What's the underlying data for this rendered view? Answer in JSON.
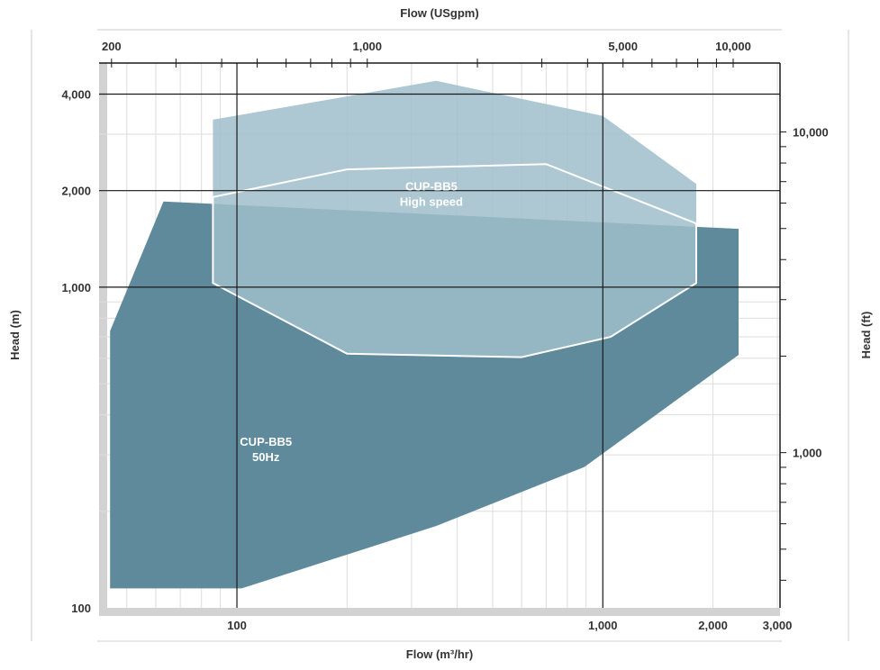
{
  "chart_data": {
    "type": "area",
    "title": "",
    "xlabel_bottom": "Flow (m³/hr)",
    "xlabel_top": "Flow (USgpm)",
    "ylabel_left": "Head (m)",
    "ylabel_right": "Head (ft)",
    "x_scale": "log",
    "y_scale": "log",
    "xlim": [
      42,
      3050
    ],
    "ylim": [
      100,
      5000
    ],
    "grid": true,
    "x_ticks_bottom": [
      {
        "value": 100,
        "label": "100"
      },
      {
        "value": 1000,
        "label": "1,000"
      },
      {
        "value": 2000,
        "label": "2,000"
      },
      {
        "value": 3000,
        "label": "3,000"
      }
    ],
    "x_ticks_top": [
      {
        "value": 200,
        "label": "200"
      },
      {
        "value": 1000,
        "label": "1,000"
      },
      {
        "value": 5000,
        "label": "5,000"
      },
      {
        "value": 10000,
        "label": "10,000"
      }
    ],
    "y_ticks_left": [
      {
        "value": 100,
        "label": "100"
      },
      {
        "value": 1000,
        "label": "1,000"
      },
      {
        "value": 2000,
        "label": "2,000"
      },
      {
        "value": 4000,
        "label": "4,000"
      }
    ],
    "y_ticks_right": [
      {
        "value": 1000,
        "label": "1,000"
      },
      {
        "value": 10000,
        "label": "10,000"
      }
    ],
    "series": [
      {
        "name": "CUP-BB5 50Hz",
        "label_lines": [
          "CUP-BB5",
          "50Hz"
        ],
        "label_at": [
          120,
          320
        ],
        "color": "#5e8a9c",
        "points": [
          [
            45,
            730
          ],
          [
            63,
            1850
          ],
          [
            2350,
            1520
          ],
          [
            2350,
            615
          ],
          [
            890,
            275
          ],
          [
            350,
            180
          ],
          [
            103,
            115
          ],
          [
            45,
            115
          ]
        ]
      },
      {
        "name": "CUP-BB5 High speed",
        "label_lines": [
          "CUP-BB5",
          "High speed"
        ],
        "label_at": [
          340,
          2000
        ],
        "color": "#9fbecb",
        "opacity": 0.85,
        "outline_color": "#ffffff",
        "points": [
          [
            86,
            3330
          ],
          [
            350,
            4400
          ],
          [
            1000,
            3420
          ],
          [
            1800,
            2100
          ],
          [
            1800,
            1030
          ],
          [
            1050,
            700
          ],
          [
            600,
            605
          ],
          [
            200,
            620
          ],
          [
            86,
            1030
          ]
        ]
      },
      {
        "name": "CUP-BB5 High speed envelope",
        "color": "#ffffff",
        "points": [
          [
            86,
            1030
          ],
          [
            86,
            1910
          ],
          [
            200,
            2330
          ],
          [
            700,
            2420
          ],
          [
            1800,
            1580
          ],
          [
            1800,
            1030
          ],
          [
            1050,
            700
          ],
          [
            600,
            605
          ],
          [
            200,
            620
          ]
        ]
      }
    ]
  }
}
